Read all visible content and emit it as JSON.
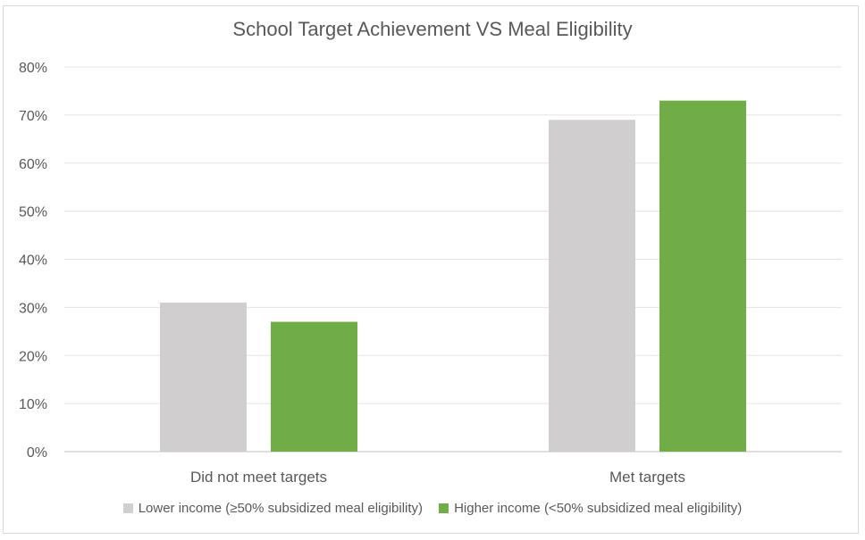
{
  "chart_data": {
    "type": "bar",
    "title": "School Target Achievement VS Meal Eligibility",
    "categories": [
      "Did not meet targets",
      "Met targets"
    ],
    "series": [
      {
        "name": "Lower income (≥50% subsidized meal eligibility)",
        "values": [
          31,
          69
        ],
        "color": "#d0cece"
      },
      {
        "name": "Higher income (<50% subsidized meal eligibility)",
        "values": [
          27,
          73
        ],
        "color": "#70ad47"
      }
    ],
    "ylim": [
      0,
      80
    ],
    "yticks": [
      "0%",
      "10%",
      "20%",
      "30%",
      "40%",
      "50%",
      "60%",
      "70%",
      "80%"
    ],
    "ytick_values": [
      0,
      10,
      20,
      30,
      40,
      50,
      60,
      70,
      80
    ],
    "grid": true,
    "legend_position": "bottom"
  }
}
